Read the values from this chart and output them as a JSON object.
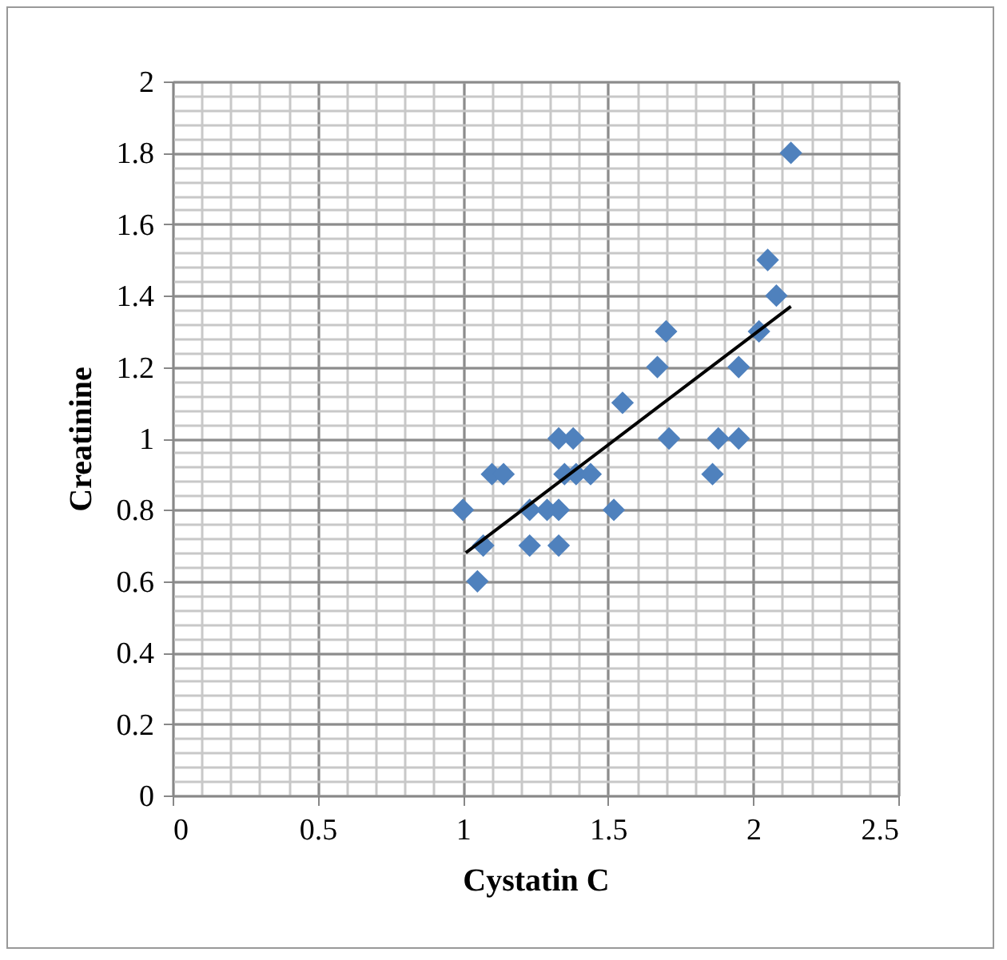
{
  "chart_data": {
    "type": "scatter",
    "xlabel": "Cystatin C",
    "ylabel": "Creatinine",
    "marker": "diamond",
    "grid": true,
    "xlim": [
      0,
      2.5
    ],
    "xticks": [
      0,
      0.5,
      1,
      1.5,
      2,
      2.5
    ],
    "ylim": [
      0,
      2
    ],
    "yticks": [
      0,
      0.2,
      0.4,
      0.6,
      0.8,
      1,
      1.2,
      1.4,
      1.6,
      1.8,
      2
    ],
    "series": [
      {
        "color": "#4f81bd",
        "x": [
          1.0,
          1.07,
          1.05,
          1.1,
          1.14,
          1.23,
          1.23,
          1.29,
          1.33,
          1.33,
          1.33,
          1.38,
          1.35,
          1.39,
          1.44,
          1.52,
          1.55,
          1.67,
          1.7,
          1.71,
          1.86,
          1.88,
          1.95,
          1.95,
          2.02,
          2.05,
          2.08,
          2.13
        ],
        "values": [
          0.8,
          0.7,
          0.6,
          0.9,
          0.9,
          0.8,
          0.7,
          0.8,
          0.8,
          0.7,
          1.0,
          1.0,
          0.9,
          0.9,
          0.9,
          0.8,
          1.1,
          1.2,
          1.3,
          1.0,
          0.9,
          1.0,
          1.0,
          1.2,
          1.3,
          1.5,
          1.4,
          1.8
        ]
      },
      {
        "type": "line",
        "marker": "none",
        "color": "#000000",
        "x": [
          1.01,
          2.13
        ],
        "values": [
          0.68,
          1.37
        ]
      }
    ]
  }
}
